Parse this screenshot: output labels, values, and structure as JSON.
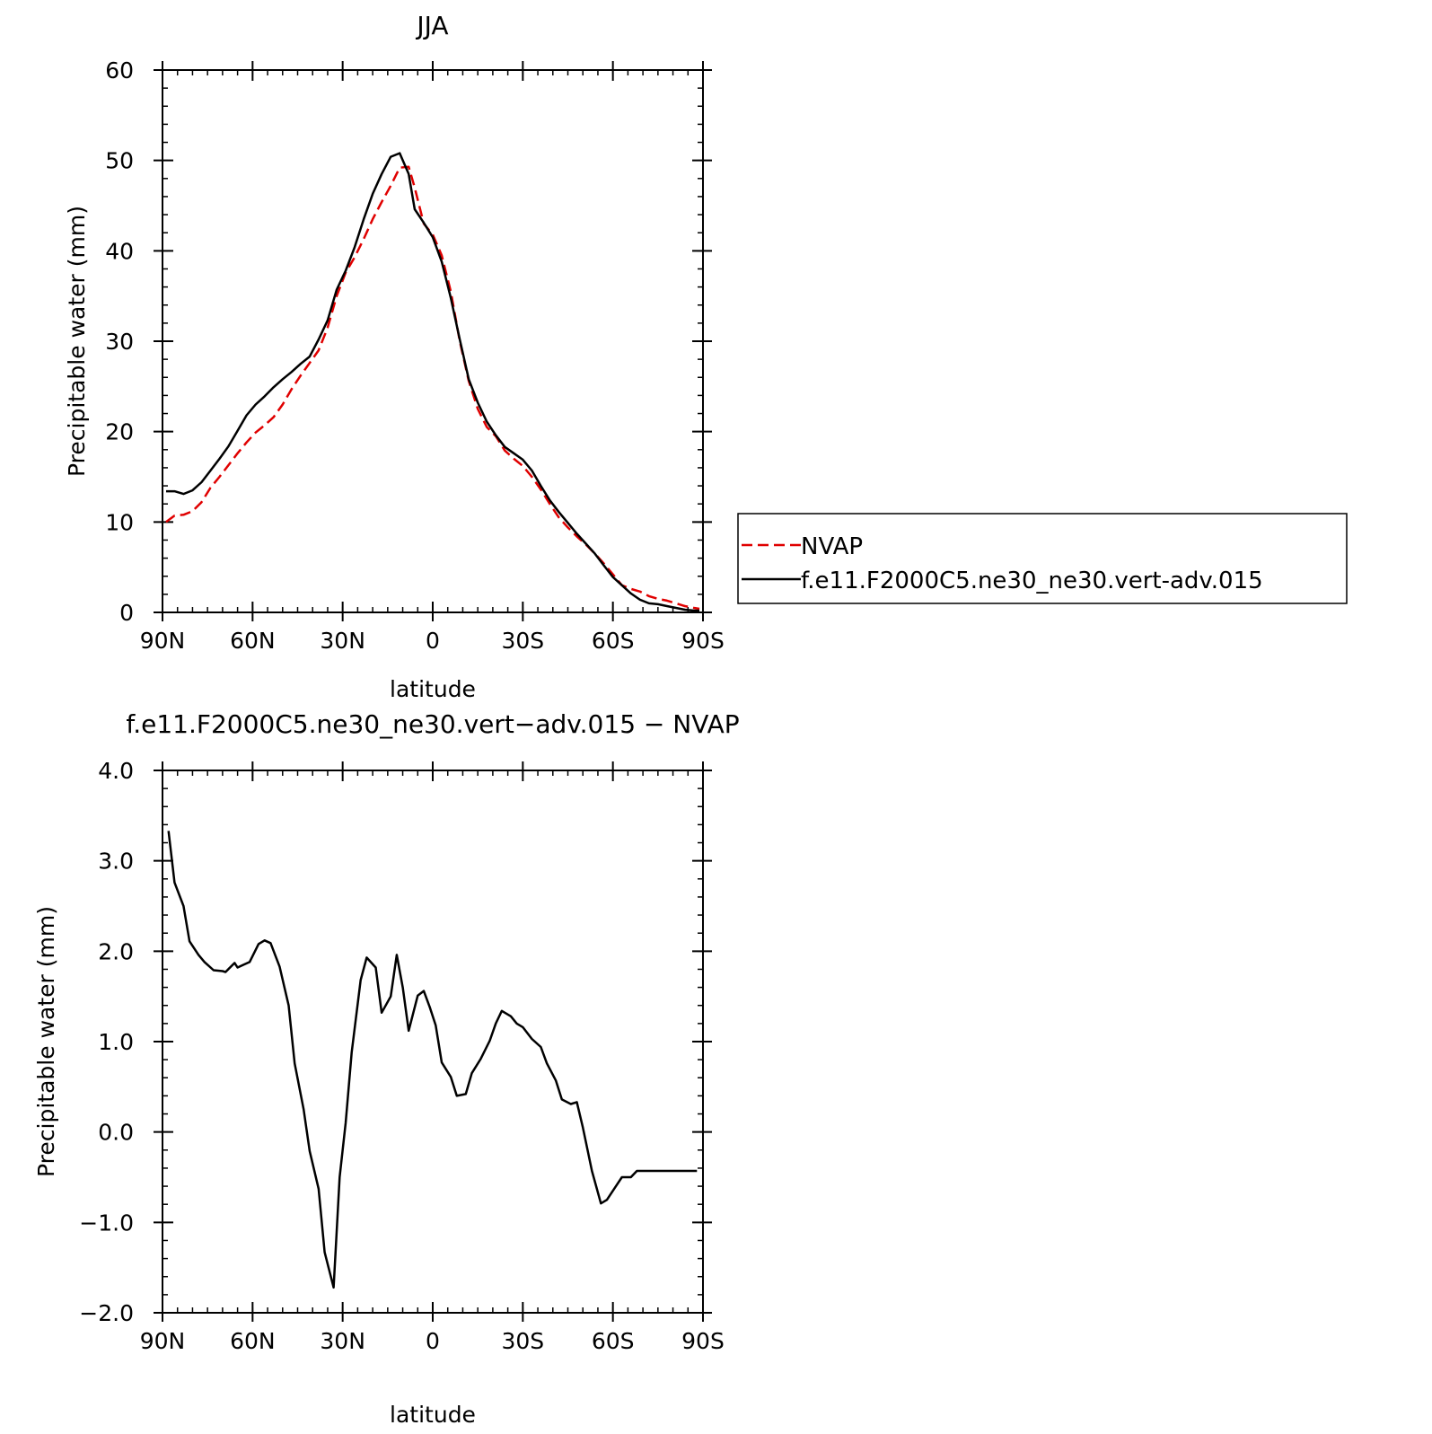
{
  "chart_data": [
    {
      "type": "line",
      "title": "JJA",
      "xlabel": "latitude",
      "ylabel": "Precipitable water (mm)",
      "xlim": [
        -90,
        90
      ],
      "ylim": [
        0,
        60
      ],
      "xticks": [
        {
          "value": -90,
          "label": "90N"
        },
        {
          "value": -60,
          "label": "60N"
        },
        {
          "value": -30,
          "label": "30N"
        },
        {
          "value": 0,
          "label": "0"
        },
        {
          "value": 30,
          "label": "30S"
        },
        {
          "value": 60,
          "label": "60S"
        },
        {
          "value": 90,
          "label": "90S"
        }
      ],
      "yticks": [
        {
          "value": 0,
          "label": "0"
        },
        {
          "value": 10,
          "label": "10"
        },
        {
          "value": 20,
          "label": "20"
        },
        {
          "value": 30,
          "label": "30"
        },
        {
          "value": 40,
          "label": "40"
        },
        {
          "value": 50,
          "label": "50"
        },
        {
          "value": 60,
          "label": "60"
        }
      ],
      "legend": {
        "placement": "right",
        "entries": [
          "NVAP",
          "f.e11.F2000C5.ne30_ne30.vert-adv.015"
        ]
      },
      "series": [
        {
          "name": "NVAP",
          "color": "#e00000",
          "dash": "dashed",
          "x": [
            -88.8,
            -86,
            -83,
            -80,
            -77,
            -74,
            -71,
            -68,
            -65,
            -62,
            -59,
            -56,
            -53,
            -50,
            -47,
            -44,
            -41,
            -38,
            -35,
            -32,
            -29,
            -26,
            -23,
            -20,
            -17,
            -14,
            -11,
            -8,
            -6,
            -3,
            0,
            3,
            6,
            9,
            12,
            15,
            18,
            21,
            24,
            27,
            30,
            33,
            36,
            39,
            42,
            45,
            48,
            51,
            54,
            57,
            60,
            63,
            66,
            69,
            72,
            75,
            78,
            81,
            84,
            87,
            88.8
          ],
          "y": [
            10.0,
            10.7,
            10.8,
            11.2,
            12.2,
            13.8,
            15.0,
            16.3,
            17.6,
            18.8,
            19.9,
            20.7,
            21.6,
            23.0,
            24.7,
            26.2,
            27.6,
            29.0,
            31.5,
            35.0,
            37.6,
            39.3,
            41.3,
            43.5,
            45.4,
            47.2,
            49.2,
            49.3,
            47.0,
            43.0,
            41.8,
            39.5,
            35.5,
            30.0,
            25.6,
            22.5,
            20.5,
            19.5,
            17.9,
            17.0,
            16.2,
            15.0,
            13.6,
            12.0,
            10.5,
            9.4,
            8.4,
            7.5,
            6.5,
            5.4,
            4.2,
            3.0,
            2.6,
            2.3,
            1.8,
            1.5,
            1.3,
            1.0,
            0.7,
            0.5,
            0.4
          ]
        },
        {
          "name": "f.e11.F2000C5.ne30_ne30.vert-adv.015",
          "color": "#000000",
          "dash": "solid",
          "x": [
            -88.8,
            -86,
            -83,
            -80,
            -77,
            -74,
            -71,
            -68,
            -65,
            -62,
            -59,
            -56,
            -53,
            -50,
            -47,
            -44,
            -41,
            -38,
            -35,
            -32,
            -29,
            -26,
            -23,
            -20,
            -17,
            -14,
            -11,
            -8,
            -6,
            -3,
            0,
            3,
            6,
            9,
            12,
            15,
            18,
            21,
            24,
            27,
            30,
            33,
            36,
            39,
            42,
            45,
            48,
            51,
            54,
            57,
            60,
            63,
            66,
            69,
            72,
            75,
            78,
            81,
            84,
            87,
            88.8
          ],
          "y": [
            13.4,
            13.4,
            13.1,
            13.5,
            14.4,
            15.7,
            17.0,
            18.4,
            20.1,
            21.8,
            23.0,
            23.9,
            24.9,
            25.8,
            26.6,
            27.5,
            28.3,
            30.2,
            32.3,
            35.7,
            37.8,
            40.4,
            43.5,
            46.3,
            48.5,
            50.4,
            50.8,
            48.5,
            44.6,
            43.1,
            41.5,
            38.8,
            34.8,
            30.2,
            25.8,
            23.2,
            21.1,
            19.6,
            18.3,
            17.6,
            16.9,
            15.7,
            14.0,
            12.4,
            11.1,
            9.9,
            8.7,
            7.6,
            6.5,
            5.2,
            3.9,
            3.0,
            2.1,
            1.4,
            1.0,
            0.9,
            0.7,
            0.5,
            0.3,
            0.2,
            0.2
          ]
        }
      ]
    },
    {
      "type": "line",
      "title": "f.e11.F2000C5.ne30_ne30.vert−adv.015 − NVAP",
      "xlabel": "latitude",
      "ylabel": "Precipitable water (mm)",
      "xlim": [
        -90,
        90
      ],
      "ylim": [
        -2.0,
        4.0
      ],
      "xticks": [
        {
          "value": -90,
          "label": "90N"
        },
        {
          "value": -60,
          "label": "60N"
        },
        {
          "value": -30,
          "label": "30N"
        },
        {
          "value": 0,
          "label": "0"
        },
        {
          "value": 30,
          "label": "30S"
        },
        {
          "value": 60,
          "label": "60S"
        },
        {
          "value": 90,
          "label": "90S"
        }
      ],
      "yticks": [
        {
          "value": -2,
          "label": "−2.0"
        },
        {
          "value": -1,
          "label": "−1.0"
        },
        {
          "value": 0,
          "label": "0.0"
        },
        {
          "value": 1,
          "label": "1.0"
        },
        {
          "value": 2,
          "label": "2.0"
        },
        {
          "value": 3,
          "label": "3.0"
        },
        {
          "value": 4,
          "label": "4.0"
        }
      ],
      "series": [
        {
          "color": "#000000",
          "dash": "solid",
          "x": [
            -88,
            -86,
            -83,
            -81,
            -78,
            -76,
            -73,
            -70,
            -69,
            -66,
            -65,
            -63,
            -61,
            -58,
            -56,
            -54,
            -51,
            -48,
            -46,
            -43,
            -41,
            -38,
            -36,
            -33,
            -31,
            -29,
            -27,
            -24,
            -22,
            -19,
            -17,
            -14,
            -12,
            -10,
            -8,
            -5,
            -3,
            -1,
            1,
            3,
            6,
            8,
            11,
            13,
            16,
            19,
            21,
            23,
            26,
            28,
            30,
            33,
            36,
            38,
            41,
            43,
            46,
            48,
            50,
            53,
            56,
            58,
            61,
            63,
            66,
            68,
            71,
            73,
            76,
            78,
            80,
            83,
            85,
            88
          ],
          "y": [
            3.33,
            2.76,
            2.5,
            2.11,
            1.96,
            1.88,
            1.79,
            1.78,
            1.77,
            1.87,
            1.82,
            1.85,
            1.88,
            2.08,
            2.12,
            2.09,
            1.83,
            1.4,
            0.76,
            0.25,
            -0.21,
            -0.63,
            -1.33,
            -1.72,
            -0.5,
            0.1,
            0.88,
            1.68,
            1.93,
            1.82,
            1.32,
            1.5,
            1.96,
            1.6,
            1.12,
            1.51,
            1.56,
            1.38,
            1.18,
            0.77,
            0.61,
            0.4,
            0.42,
            0.65,
            0.81,
            1.01,
            1.2,
            1.34,
            1.28,
            1.2,
            1.16,
            1.03,
            0.94,
            0.76,
            0.57,
            0.36,
            0.31,
            0.33,
            0.05,
            -0.43,
            -0.79,
            -0.75,
            -0.6,
            -0.5,
            -0.5,
            -0.43,
            -0.43,
            -0.43,
            -0.43,
            -0.43,
            -0.43,
            -0.43,
            -0.43,
            -0.43
          ]
        }
      ]
    }
  ]
}
